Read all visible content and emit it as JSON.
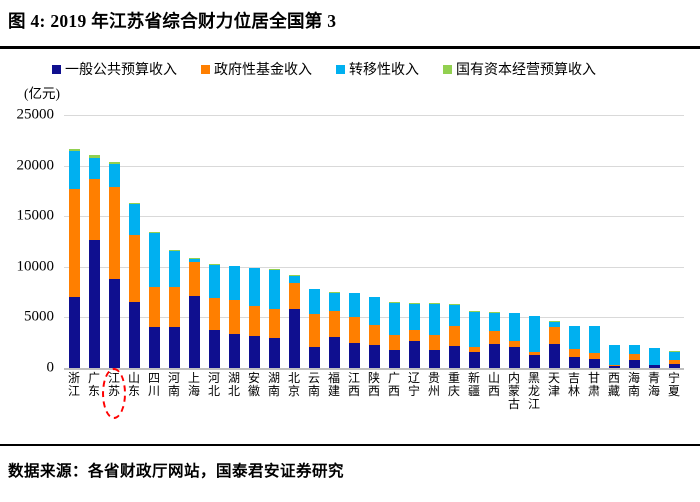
{
  "figure": {
    "title": "图 4:  2019 年江苏省综合财力位居全国第 3",
    "source": "数据来源：各省财政厅网站，国泰君安证券研究"
  },
  "chart_data": {
    "type": "bar",
    "subtype": "stacked-vertical",
    "title": "2019 年江苏省综合财力位居全国第 3",
    "unit_label": "(亿元)",
    "xlabel": "",
    "ylabel": "亿元",
    "ylim": [
      0,
      25000
    ],
    "yticks": [
      0,
      5000,
      10000,
      15000,
      20000,
      25000
    ],
    "grid": "horizontal",
    "legend_position": "top",
    "categories": [
      "浙江",
      "广东",
      "江苏",
      "山东",
      "四川",
      "河南",
      "上海",
      "河北",
      "湖北",
      "安徽",
      "湖南",
      "北京",
      "云南",
      "福建",
      "江西",
      "陕西",
      "广西",
      "辽宁",
      "贵州",
      "重庆",
      "新疆",
      "山西",
      "内蒙古",
      "黑龙江",
      "天津",
      "吉林",
      "甘肃",
      "西藏",
      "海南",
      "青海",
      "宁夏"
    ],
    "series": [
      {
        "name": "一般公共预算收入",
        "color": "#0f0f8f",
        "values": [
          7048,
          12651,
          8802,
          6527,
          4070,
          4042,
          7165,
          3742,
          3388,
          3183,
          3007,
          5817,
          2074,
          3052,
          2487,
          2288,
          1811,
          2652,
          1767,
          2135,
          1577,
          2347,
          2060,
          1263,
          2410,
          1117,
          850,
          222,
          814,
          282,
          424
        ]
      },
      {
        "name": "政府性基金收入",
        "color": "#ff7f00",
        "values": [
          10640,
          5990,
          9090,
          6640,
          3950,
          4000,
          3330,
          3140,
          3330,
          2940,
          2780,
          2560,
          3270,
          2630,
          2510,
          1970,
          1460,
          1110,
          1500,
          2030,
          500,
          1300,
          640,
          360,
          1650,
          770,
          600,
          30,
          540,
          60,
          360
        ]
      },
      {
        "name": "转移性收入",
        "color": "#00b0f0",
        "values": [
          3730,
          2120,
          2240,
          3050,
          5320,
          3560,
          260,
          3330,
          3330,
          3740,
          3910,
          750,
          2430,
          1760,
          2370,
          2770,
          3180,
          2590,
          3090,
          2080,
          3490,
          1790,
          2720,
          3490,
          500,
          2270,
          2690,
          2020,
          880,
          1620,
          840
        ]
      },
      {
        "name": "国有资本经营预算收入",
        "color": "#92d050",
        "values": [
          180,
          300,
          210,
          80,
          80,
          50,
          90,
          50,
          50,
          60,
          50,
          100,
          30,
          60,
          30,
          30,
          30,
          100,
          30,
          60,
          30,
          60,
          30,
          30,
          60,
          30,
          30,
          10,
          30,
          10,
          10
        ]
      }
    ],
    "annotation": {
      "type": "dashed-ellipse",
      "color": "#ff0000",
      "category": "江苏",
      "note": "红色虚线圈出江苏"
    },
    "colors": {
      "gridline": "#d9d9d9",
      "axis_line": "#bfbfbf",
      "rule": "#000000",
      "highlight": "#ff0000"
    }
  }
}
